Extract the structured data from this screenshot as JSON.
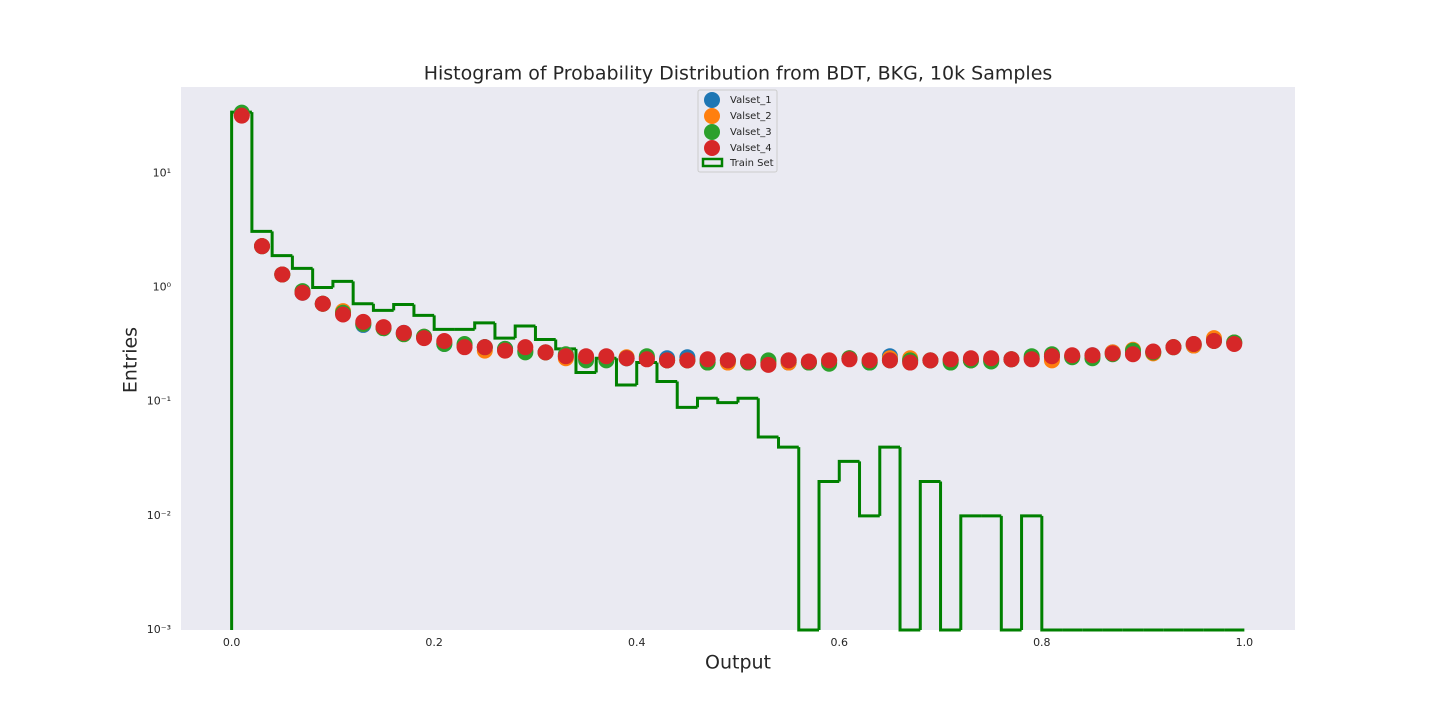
{
  "chart_data": {
    "type": "histogram",
    "title": "Histogram of Probability Distribution from BDT, BKG, 10k Samples",
    "xlabel": "Output",
    "ylabel": "Entries",
    "xlim": [
      -0.05,
      1.05
    ],
    "ylim": [
      0.001,
      57
    ],
    "xticks": [
      {
        "value": 0,
        "label": "0.0"
      },
      0.2,
      0.4,
      0.6,
      0.8,
      {
        "value": 1,
        "label": "1.0"
      }
    ],
    "yticks": [
      {
        "value": 0.001,
        "label": "10⁻³"
      },
      {
        "value": 0.01,
        "label": "10⁻²"
      },
      {
        "value": 0.1,
        "label": "10⁻¹"
      },
      {
        "value": 1,
        "label": "10⁰"
      },
      {
        "value": 10,
        "label": "10¹"
      }
    ],
    "log_y": true,
    "grid": false,
    "legend": "upper center",
    "bins": [
      0,
      0.02,
      0.04,
      0.06,
      0.08,
      0.1,
      0.12,
      0.14,
      0.16,
      0.18,
      0.2,
      0.22,
      0.24,
      0.26,
      0.28,
      0.3,
      0.32,
      0.34,
      0.36,
      0.38,
      0.4,
      0.42,
      0.44,
      0.46,
      0.48,
      0.5,
      0.52,
      0.54,
      0.56,
      0.58,
      0.6,
      0.62,
      0.64,
      0.66,
      0.68,
      0.7,
      0.72,
      0.74,
      0.76,
      0.78,
      0.8,
      0.82,
      0.84,
      0.86,
      0.88,
      0.9,
      0.92,
      0.94,
      0.96,
      0.98,
      1
    ],
    "histogram": {
      "name": "Train Set",
      "color": "#008000",
      "counts": [
        34.3,
        3.1,
        1.9,
        1.47,
        1.0,
        1.13,
        0.72,
        0.63,
        0.71,
        0.57,
        0.43,
        0.43,
        0.49,
        0.36,
        0.46,
        0.35,
        0.29,
        0.18,
        0.24,
        0.14,
        0.22,
        0.15,
        0.089,
        0.107,
        0.098,
        0.107,
        0.049,
        0.04,
        0,
        0.02,
        0.03,
        0.01,
        0.04,
        0,
        0.02,
        0,
        0.01,
        0.01,
        0,
        0.01,
        0,
        0,
        0,
        0,
        0,
        0,
        0,
        0,
        0,
        0
      ]
    },
    "x": [
      0.01,
      0.03,
      0.05,
      0.07,
      0.09,
      0.11,
      0.13,
      0.15,
      0.17,
      0.19,
      0.21,
      0.23,
      0.25,
      0.27,
      0.29,
      0.31,
      0.33,
      0.35,
      0.37,
      0.39,
      0.41,
      0.43,
      0.45,
      0.47,
      0.49,
      0.51,
      0.53,
      0.55,
      0.57,
      0.59,
      0.61,
      0.63,
      0.65,
      0.67,
      0.69,
      0.71,
      0.73,
      0.75,
      0.77,
      0.79,
      0.81,
      0.83,
      0.85,
      0.87,
      0.89,
      0.91,
      0.93,
      0.95,
      0.97,
      0.99
    ],
    "series": [
      {
        "name": "Valset_1",
        "color": "#1f77b4",
        "values": [
          33,
          2.3,
          1.3,
          0.9,
          0.72,
          0.6,
          0.47,
          0.44,
          0.4,
          0.37,
          0.32,
          0.31,
          0.3,
          0.29,
          0.28,
          0.27,
          0.25,
          0.24,
          0.24,
          0.24,
          0.24,
          0.24,
          0.245,
          0.23,
          0.23,
          0.22,
          0.22,
          0.22,
          0.22,
          0.22,
          0.24,
          0.22,
          0.25,
          0.23,
          0.23,
          0.23,
          0.23,
          0.23,
          0.235,
          0.24,
          0.25,
          0.25,
          0.255,
          0.27,
          0.27,
          0.27,
          0.3,
          0.31,
          0.35,
          0.33
        ]
      },
      {
        "name": "Valset_2",
        "color": "#ff7f0e",
        "values": [
          33,
          2.3,
          1.3,
          0.92,
          0.72,
          0.62,
          0.48,
          0.44,
          0.39,
          0.37,
          0.33,
          0.31,
          0.28,
          0.28,
          0.28,
          0.27,
          0.24,
          0.24,
          0.24,
          0.245,
          0.245,
          0.23,
          0.23,
          0.22,
          0.22,
          0.22,
          0.22,
          0.22,
          0.22,
          0.23,
          0.24,
          0.23,
          0.24,
          0.24,
          0.23,
          0.23,
          0.23,
          0.235,
          0.235,
          0.24,
          0.23,
          0.25,
          0.25,
          0.27,
          0.285,
          0.265,
          0.3,
          0.31,
          0.36,
          0.33
        ]
      },
      {
        "name": "Valset_3",
        "color": "#2ca02c",
        "values": [
          34,
          2.3,
          1.3,
          0.93,
          0.72,
          0.6,
          0.48,
          0.44,
          0.39,
          0.37,
          0.32,
          0.32,
          0.3,
          0.29,
          0.27,
          0.27,
          0.26,
          0.23,
          0.23,
          0.24,
          0.25,
          0.23,
          0.23,
          0.22,
          0.23,
          0.22,
          0.23,
          0.23,
          0.22,
          0.215,
          0.24,
          0.22,
          0.23,
          0.23,
          0.23,
          0.22,
          0.23,
          0.225,
          0.235,
          0.25,
          0.26,
          0.245,
          0.24,
          0.26,
          0.28,
          0.27,
          0.3,
          0.32,
          0.34,
          0.33
        ]
      },
      {
        "name": "Valset_4",
        "color": "#d62728",
        "values": [
          32,
          2.3,
          1.3,
          0.9,
          0.72,
          0.58,
          0.5,
          0.45,
          0.4,
          0.36,
          0.34,
          0.3,
          0.3,
          0.28,
          0.3,
          0.27,
          0.25,
          0.25,
          0.25,
          0.24,
          0.235,
          0.23,
          0.23,
          0.235,
          0.23,
          0.225,
          0.21,
          0.23,
          0.225,
          0.23,
          0.235,
          0.23,
          0.23,
          0.22,
          0.23,
          0.235,
          0.24,
          0.24,
          0.235,
          0.235,
          0.25,
          0.255,
          0.255,
          0.265,
          0.26,
          0.275,
          0.3,
          0.32,
          0.34,
          0.32
        ]
      }
    ]
  }
}
